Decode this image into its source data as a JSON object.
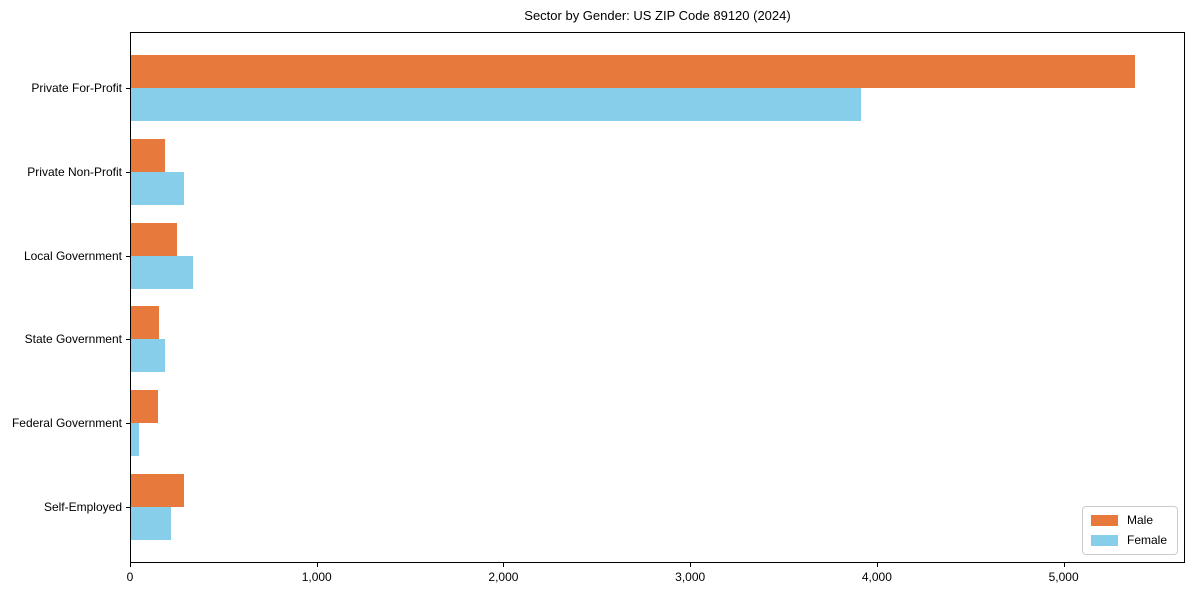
{
  "title": "Sector by Gender: US ZIP Code 89120 (2024)",
  "chart_data": {
    "type": "bar",
    "orientation": "horizontal",
    "title": "Sector by Gender: US ZIP Code 89120 (2024)",
    "categories": [
      "Private For-Profit",
      "Private Non-Profit",
      "Local Government",
      "State Government",
      "Federal Government",
      "Self-Employed"
    ],
    "series": [
      {
        "name": "Male",
        "color": "#e8793d",
        "values": [
          5385,
          181,
          248,
          151,
          144,
          285
        ]
      },
      {
        "name": "Female",
        "color": "#87ceeb",
        "values": [
          3915,
          283,
          333,
          181,
          45,
          217
        ]
      }
    ],
    "xlabel": "",
    "ylabel": "",
    "xlim": [
      0,
      5650
    ],
    "x_ticks": [
      0,
      1000,
      2000,
      3000,
      4000,
      5000
    ],
    "x_tick_labels": [
      "0",
      "1,000",
      "2,000",
      "3,000",
      "4,000",
      "5,000"
    ],
    "grid": false,
    "legend": {
      "position": "lower right",
      "entries": [
        "Male",
        "Female"
      ]
    }
  },
  "colors": {
    "male": "#e8793d",
    "female": "#87ceeb",
    "spine": "#000000",
    "background": "#ffffff",
    "legend_border": "#cccccc"
  }
}
